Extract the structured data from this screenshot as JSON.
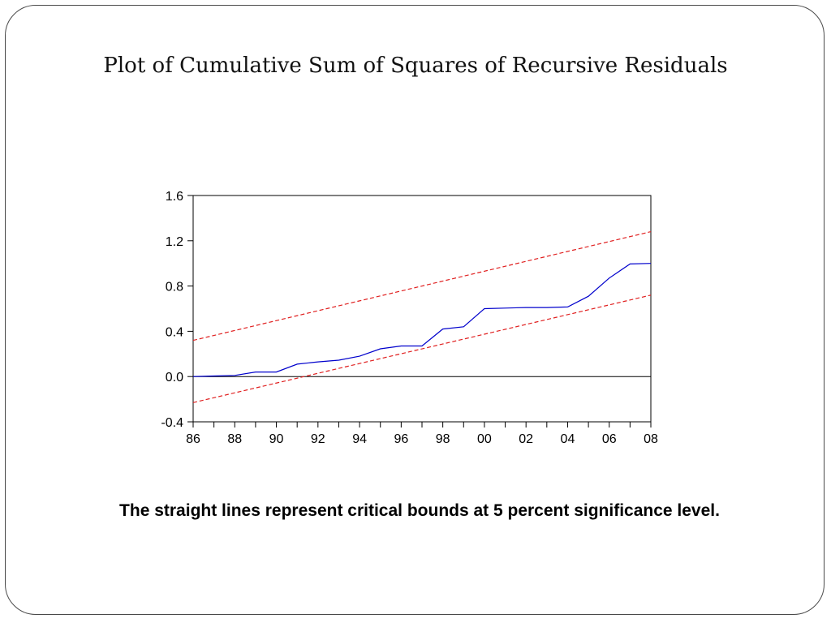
{
  "slide": {
    "title": "Plot of Cumulative Sum of Squares of Recursive Residuals",
    "caption": "The straight lines represent critical bounds at 5 percent significance level."
  },
  "chart_data": {
    "type": "line",
    "title": "",
    "xlabel": "",
    "ylabel": "",
    "xlim": [
      1986,
      2008
    ],
    "ylim": [
      -0.4,
      1.6
    ],
    "x_tick_labels": [
      "86",
      "88",
      "90",
      "92",
      "94",
      "96",
      "98",
      "00",
      "02",
      "04",
      "06",
      "08"
    ],
    "x_tick_values": [
      1986,
      1988,
      1990,
      1992,
      1994,
      1996,
      1998,
      2000,
      2002,
      2004,
      2006,
      2008
    ],
    "y_tick_labels": [
      "-0.4",
      "0.0",
      "0.4",
      "0.8",
      "1.2",
      "1.6"
    ],
    "y_tick_values": [
      -0.4,
      0.0,
      0.4,
      0.8,
      1.2,
      1.6
    ],
    "grid": false,
    "legend": "none",
    "zero_line": true,
    "series": [
      {
        "style": "solid",
        "color": "#0000cc",
        "x": [
          1986,
          1987,
          1988,
          1989,
          1990,
          1991,
          1992,
          1993,
          1994,
          1995,
          1996,
          1997,
          1998,
          1999,
          2000,
          2001,
          2002,
          2003,
          2004,
          2005,
          2006,
          2007,
          2008
        ],
        "values": [
          0.0,
          0.005,
          0.01,
          0.04,
          0.04,
          0.11,
          0.13,
          0.145,
          0.18,
          0.245,
          0.27,
          0.27,
          0.42,
          0.44,
          0.6,
          0.605,
          0.61,
          0.61,
          0.615,
          0.71,
          0.87,
          0.995,
          1.0
        ]
      },
      {
        "style": "dashed",
        "color": "#e02020",
        "x": [
          1986,
          2008
        ],
        "values": [
          0.32,
          1.28
        ]
      },
      {
        "style": "dashed",
        "color": "#e02020",
        "x": [
          1986,
          2008
        ],
        "values": [
          -0.23,
          0.72
        ]
      }
    ]
  }
}
